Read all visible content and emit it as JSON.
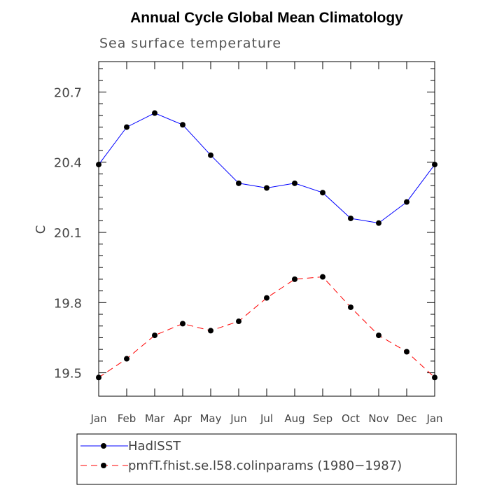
{
  "chart_data": {
    "type": "line",
    "title": "Annual Cycle Global Mean Climatology",
    "subtitle": "Sea surface temperature",
    "xlabel": "",
    "ylabel": "C",
    "categories": [
      "Jan",
      "Feb",
      "Mar",
      "Apr",
      "May",
      "Jun",
      "Jul",
      "Aug",
      "Sep",
      "Oct",
      "Nov",
      "Dec",
      "Jan"
    ],
    "yticks": [
      19.5,
      19.8,
      20.1,
      20.4,
      20.7
    ],
    "ytick_labels": [
      "19.5",
      "19.8",
      "20.1",
      "20.4",
      "20.7"
    ],
    "ylim": [
      19.4,
      20.83
    ],
    "series": [
      {
        "name": "HadISST",
        "color": "#0000ff",
        "dash": "solid",
        "marker": "filled-circle",
        "values": [
          20.39,
          20.55,
          20.61,
          20.56,
          20.43,
          20.31,
          20.29,
          20.31,
          20.27,
          20.16,
          20.14,
          20.23,
          20.39
        ]
      },
      {
        "name": "pmfT.fhist.se.l58.colinparams (1980−1987)",
        "color": "#ff0000",
        "dash": "dashed",
        "marker": "filled-circle",
        "values": [
          19.48,
          19.56,
          19.66,
          19.71,
          19.68,
          19.72,
          19.82,
          19.9,
          19.91,
          19.78,
          19.66,
          19.59,
          19.48
        ]
      }
    ],
    "grid": false,
    "legend_position": "bottom"
  }
}
